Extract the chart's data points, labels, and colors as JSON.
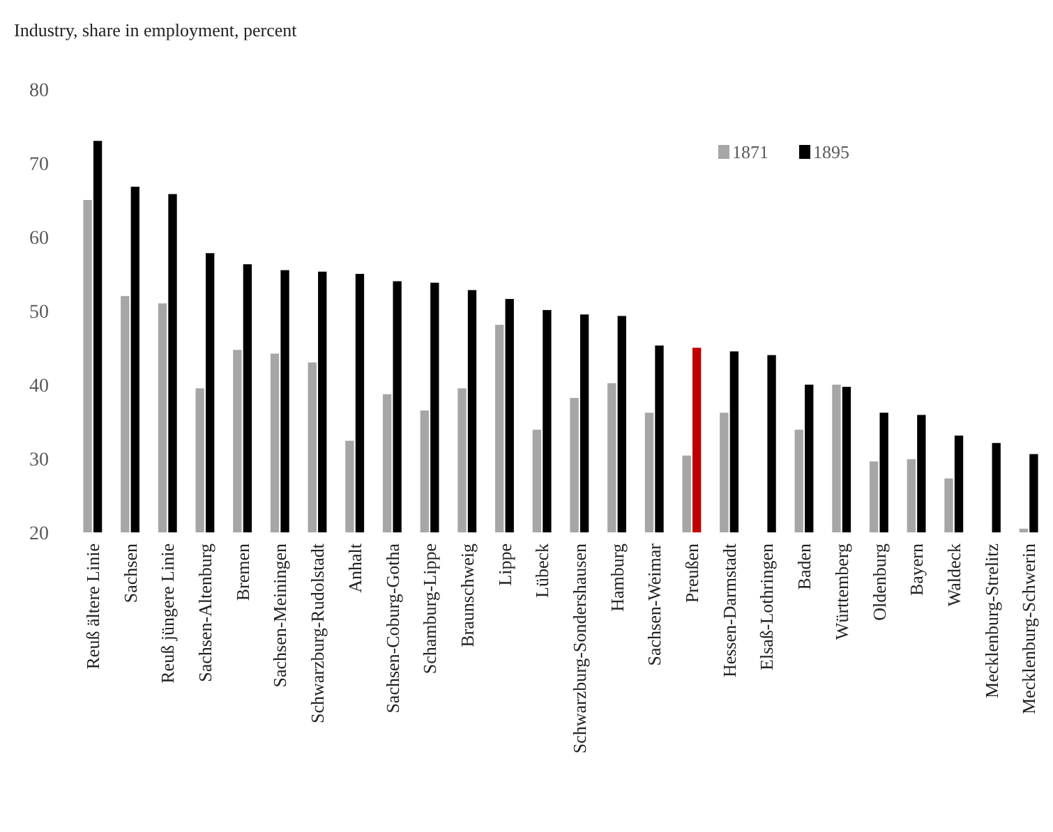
{
  "chart_data": {
    "type": "bar",
    "title": "Industry, share in employment, percent",
    "categories": [
      "Reuß ältere Linie",
      "Sachsen",
      "Reuß jüngere Linie",
      "Sachsen-Altenburg",
      "Bremen",
      "Sachsen-Meiningen",
      "Schwarzburg-Rudolstadt",
      "Anhalt",
      "Sachsen-Coburg-Gotha",
      "Schamburg-Lippe",
      "Braunschweig",
      "Lippe",
      "Lübeck",
      "Schwarzburg-Sondershausen",
      "Hamburg",
      "Sachsen-Weimar",
      "Preußen",
      "Hessen-Darmstadt",
      "Elsaß-Lothringen",
      "Baden",
      "Württemberg",
      "Oldenburg",
      "Bayern",
      "Waldeck",
      "Mecklenburg-Strelitz",
      "Mecklenburg-Schwerin"
    ],
    "series": [
      {
        "name": "1871",
        "color": "#a6a6a6",
        "values": [
          65,
          52,
          51,
          39.5,
          44.7,
          44.2,
          43,
          32.4,
          38.7,
          36.5,
          39.5,
          48.1,
          33.9,
          38.2,
          40.2,
          36.2,
          30.4,
          36.2,
          null,
          33.9,
          40,
          29.6,
          29.9,
          27.3,
          null,
          20.5
        ]
      },
      {
        "name": "1895",
        "color": "#000000",
        "colors": [
          "#000000",
          "#000000",
          "#000000",
          "#000000",
          "#000000",
          "#000000",
          "#000000",
          "#000000",
          "#000000",
          "#000000",
          "#000000",
          "#000000",
          "#000000",
          "#000000",
          "#000000",
          "#000000",
          "#c00000",
          "#000000",
          "#000000",
          "#000000",
          "#000000",
          "#000000",
          "#000000",
          "#000000",
          "#000000",
          "#000000"
        ],
        "values": [
          73,
          66.8,
          65.8,
          57.8,
          56.3,
          55.5,
          55.3,
          55,
          54,
          53.8,
          52.8,
          51.6,
          50.1,
          49.5,
          49.3,
          45.3,
          45,
          44.5,
          44,
          40,
          39.7,
          36.2,
          35.9,
          33.1,
          32.1,
          30.6
        ]
      }
    ],
    "ylim": [
      20,
      80
    ],
    "yticks": [
      20,
      30,
      40,
      50,
      60,
      70,
      80
    ],
    "grid": false,
    "legend": "top right"
  }
}
